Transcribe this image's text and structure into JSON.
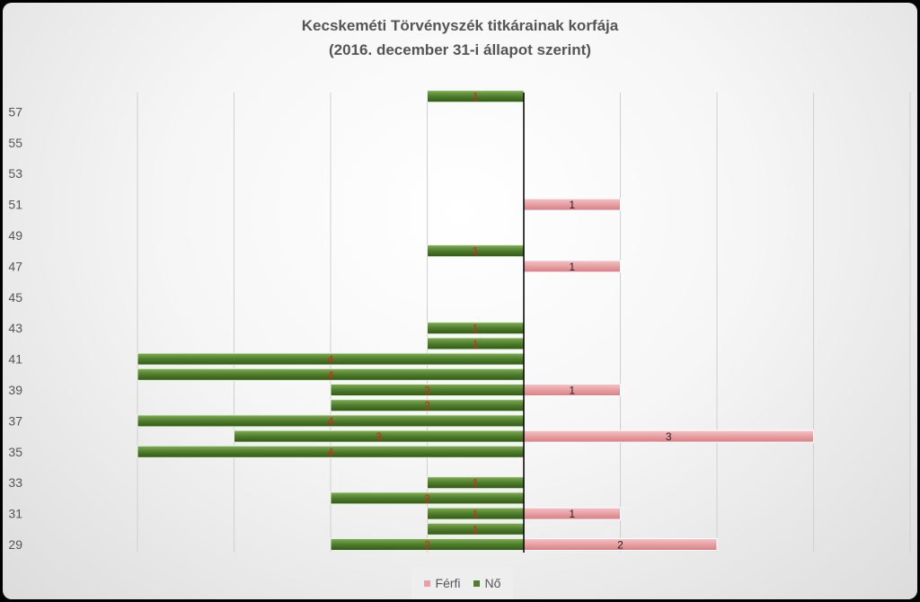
{
  "chart_data": {
    "type": "bar",
    "orientation": "horizontal-population-pyramid",
    "title": "Kecskeméti Törvényszék titkárainak korfája",
    "subtitle": "(2016. december 31-i állapot szerint)",
    "ylabel": "",
    "xlabel": "",
    "categories": [
      29,
      30,
      31,
      32,
      33,
      34,
      35,
      36,
      37,
      38,
      39,
      40,
      41,
      42,
      43,
      44,
      45,
      46,
      47,
      48,
      49,
      50,
      51,
      52,
      53,
      54,
      55,
      56,
      57,
      58
    ],
    "ytick_labels": [
      "29",
      "31",
      "33",
      "35",
      "37",
      "39",
      "41",
      "43",
      "45",
      "47",
      "49",
      "51",
      "53",
      "55",
      "57"
    ],
    "xlim": [
      -4,
      4
    ],
    "grid": true,
    "legend": "bottom",
    "series": [
      {
        "name": "Férfi",
        "color": "#e8a0a3",
        "side": "right",
        "values": [
          2,
          0,
          1,
          0,
          0,
          0,
          0,
          3,
          0,
          0,
          1,
          0,
          0,
          0,
          0,
          0,
          0,
          0,
          1,
          0,
          0,
          0,
          1,
          0,
          0,
          0,
          0,
          0,
          0,
          0
        ]
      },
      {
        "name": "Nő",
        "color": "#4f7d2c",
        "side": "left",
        "values": [
          2,
          1,
          1,
          2,
          1,
          0,
          4,
          3,
          4,
          2,
          2,
          4,
          4,
          1,
          1,
          0,
          0,
          0,
          0,
          1,
          0,
          0,
          0,
          0,
          0,
          0,
          0,
          0,
          0,
          1
        ]
      }
    ]
  }
}
